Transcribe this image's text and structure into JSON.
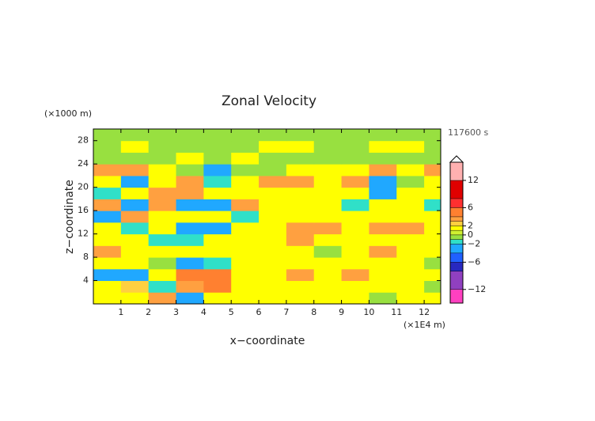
{
  "chart_data": {
    "type": "contour",
    "title": "Zonal Velocity",
    "y_unit": "(×1000 m)",
    "x_unit": "(×1E4 m)",
    "time_label": "117600 s",
    "xlabel": "x−coordinate",
    "ylabel": "z−coordinate",
    "xlim": [
      0,
      12.6
    ],
    "ylim": [
      0,
      30
    ],
    "xticks": [
      1,
      2,
      3,
      4,
      5,
      6,
      7,
      8,
      9,
      10,
      11,
      12
    ],
    "yticks": [
      4,
      8,
      12,
      16,
      20,
      24,
      28
    ],
    "x": [
      0.5,
      1.5,
      2.5,
      3.5,
      4.5,
      5.5,
      6.5,
      7.5,
      8.5,
      9.5,
      10.5,
      11.5,
      12.5
    ],
    "z": [
      1,
      3,
      5,
      7,
      9,
      11,
      13,
      15,
      17,
      19,
      21,
      23,
      25,
      27,
      29
    ],
    "field": [
      [
        1,
        1,
        3,
        -3,
        1,
        1,
        1,
        1,
        1,
        1,
        -1,
        1,
        1
      ],
      [
        1,
        2,
        -2,
        3,
        4,
        1,
        1,
        1,
        1,
        1,
        1,
        1,
        -1
      ],
      [
        -3,
        -4,
        1,
        4,
        4,
        1,
        1,
        3,
        1,
        3,
        1,
        1,
        1
      ],
      [
        1,
        1,
        -1,
        -3,
        -2,
        1,
        1,
        1,
        1,
        1,
        1,
        1,
        -1
      ],
      [
        3,
        1,
        1,
        1,
        1,
        1,
        1,
        1,
        -1,
        1,
        3,
        1,
        1
      ],
      [
        1,
        1,
        -2,
        -2,
        1,
        1,
        1,
        3,
        1,
        1,
        1,
        1,
        1
      ],
      [
        1,
        -2,
        1,
        -3,
        -3,
        1,
        1,
        3,
        3,
        1,
        3,
        3,
        1
      ],
      [
        -3,
        3,
        1,
        1,
        1,
        -2,
        1,
        1,
        1,
        1,
        1,
        1,
        1
      ],
      [
        3,
        -3,
        3,
        -3,
        -3,
        3,
        1,
        1,
        1,
        -2,
        1,
        1,
        -2
      ],
      [
        -2,
        1,
        3,
        3,
        1,
        1,
        1,
        1,
        1,
        1,
        -3,
        1,
        1
      ],
      [
        1,
        -3,
        1,
        3,
        -2,
        1,
        3,
        3,
        1,
        3,
        -4,
        -1,
        1
      ],
      [
        3,
        3,
        1,
        -1,
        -3,
        -1,
        -1,
        1,
        1,
        1,
        3,
        1,
        3
      ],
      [
        -1,
        -1,
        -1,
        1,
        -1,
        1,
        -1,
        -1,
        -1,
        -1,
        -1,
        -1,
        -1
      ],
      [
        -1,
        1,
        -1,
        -1,
        -1,
        -1,
        1,
        1,
        -1,
        -1,
        1,
        1,
        -1
      ],
      [
        -1,
        -1,
        -1,
        -1,
        -1,
        -1,
        -1,
        -1,
        -1,
        -1,
        -1,
        -1,
        -1
      ]
    ],
    "colorbar": {
      "lim": [
        -15,
        16
      ],
      "ticks": [
        {
          "value": -12,
          "label": "−12"
        },
        {
          "value": -6,
          "label": "−6"
        },
        {
          "value": -2,
          "label": "−2"
        },
        0,
        2,
        6,
        12
      ],
      "bands": [
        {
          "from": -15,
          "to": -12,
          "color": "#ff40c0"
        },
        {
          "from": -12,
          "to": -8,
          "color": "#9040c0"
        },
        {
          "from": -8,
          "to": -6,
          "color": "#2828c0"
        },
        {
          "from": -6,
          "to": -4,
          "color": "#2060ff"
        },
        {
          "from": -4,
          "to": -2,
          "color": "#20a8ff"
        },
        {
          "from": -2,
          "to": -1,
          "color": "#30e0c8"
        },
        {
          "from": -1,
          "to": 0,
          "color": "#98e040"
        },
        {
          "from": 0,
          "to": 1,
          "color": "#d0f030"
        },
        {
          "from": 1,
          "to": 2,
          "color": "#ffff00"
        },
        {
          "from": 2,
          "to": 3,
          "color": "#ffd040"
        },
        {
          "from": 3,
          "to": 4,
          "color": "#ffa040"
        },
        {
          "from": 4,
          "to": 6,
          "color": "#ff8030"
        },
        {
          "from": 6,
          "to": 8,
          "color": "#ff3030"
        },
        {
          "from": 8,
          "to": 12,
          "color": "#e00000"
        },
        {
          "from": 12,
          "to": 16,
          "color": "#ffb0b0"
        }
      ]
    }
  }
}
